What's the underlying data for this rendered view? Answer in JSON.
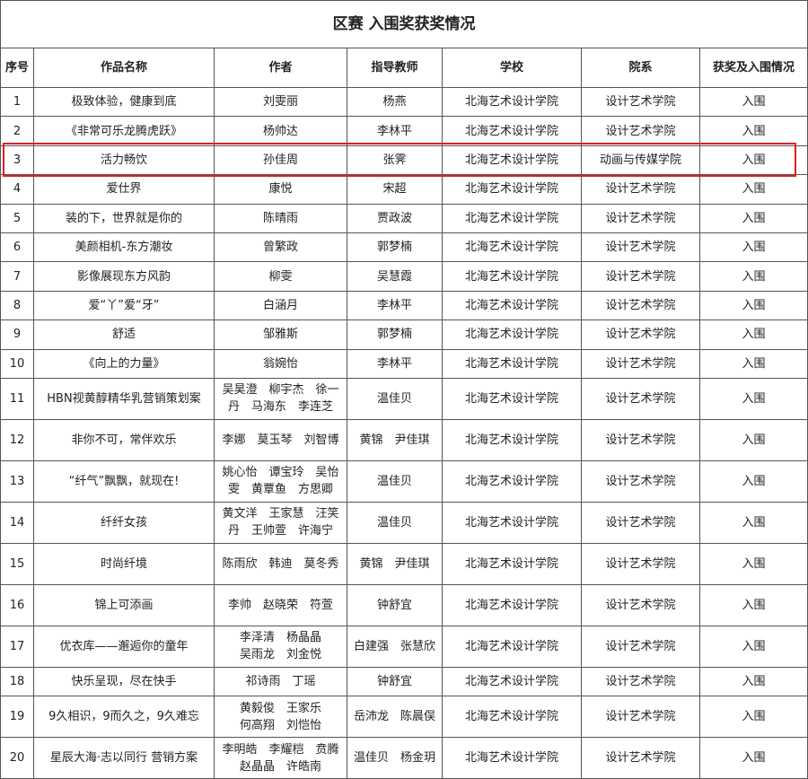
{
  "title": "区赛 入围奖获奖情况",
  "headers": [
    "序号",
    "作品名称",
    "作者",
    "指导教师",
    "学校",
    "院系",
    "获奖及入围情况"
  ],
  "highlight_color": "#e02020",
  "rows": [
    {
      "no": "1",
      "work": "极致体验，健康到底",
      "author": "刘雯丽",
      "teacher": "杨燕",
      "school": "北海艺术设计学院",
      "dept": "设计艺术学院",
      "award": "入围"
    },
    {
      "no": "2",
      "work": "《非常可乐龙腾虎跃》",
      "author": "杨帅达",
      "teacher": "李林平",
      "school": "北海艺术设计学院",
      "dept": "设计艺术学院",
      "award": "入围"
    },
    {
      "no": "3",
      "work": "活力畅饮",
      "author": "孙佳周",
      "teacher": "张霁",
      "school": "北海艺术设计学院",
      "dept": "动画与传媒学院",
      "award": "入围"
    },
    {
      "no": "4",
      "work": "爱仕界",
      "author": "康悦",
      "teacher": "宋超",
      "school": "北海艺术设计学院",
      "dept": "设计艺术学院",
      "award": "入围"
    },
    {
      "no": "5",
      "work": "装的下，世界就是你的",
      "author": "陈晴雨",
      "teacher": "贾政波",
      "school": "北海艺术设计学院",
      "dept": "设计艺术学院",
      "award": "入围"
    },
    {
      "no": "6",
      "work": "美颜相机-东方潮妆",
      "author": "曾繁政",
      "teacher": "郭梦楠",
      "school": "北海艺术设计学院",
      "dept": "设计艺术学院",
      "award": "入围"
    },
    {
      "no": "7",
      "work": "影像展现东方风韵",
      "author": "柳雯",
      "teacher": "吴慧霞",
      "school": "北海艺术设计学院",
      "dept": "设计艺术学院",
      "award": "入围"
    },
    {
      "no": "8",
      "work": "爱“丫”爱“牙”",
      "author": "白涵月",
      "teacher": "李林平",
      "school": "北海艺术设计学院",
      "dept": "设计艺术学院",
      "award": "入围"
    },
    {
      "no": "9",
      "work": "舒适",
      "author": "邹雅斯",
      "teacher": "郭梦楠",
      "school": "北海艺术设计学院",
      "dept": "设计艺术学院",
      "award": "入围"
    },
    {
      "no": "10",
      "work": "《向上的力量》",
      "author": "翁婉怡",
      "teacher": "李林平",
      "school": "北海艺术设计学院",
      "dept": "设计艺术学院",
      "award": "入围"
    },
    {
      "no": "11",
      "work": "HBN视黄醇精华乳营销策划案",
      "author": "吴昊澄　柳宇杰　徐一\n丹　马海东　李连芝",
      "teacher": "温佳贝",
      "school": "北海艺术设计学院",
      "dept": "设计艺术学院",
      "award": "入围"
    },
    {
      "no": "12",
      "work": "非你不可，常伴欢乐",
      "author": "李娜　莫玉琴　刘智博",
      "teacher": "黄锦　尹佳琪",
      "school": "北海艺术设计学院",
      "dept": "设计艺术学院",
      "award": "入围"
    },
    {
      "no": "13",
      "work": "“纤气”飘飘，就现在!",
      "author": "姚心怡　谭宝玲　吴怡\n雯　黄覃鱼　方思卿",
      "teacher": "温佳贝",
      "school": "北海艺术设计学院",
      "dept": "设计艺术学院",
      "award": "入围"
    },
    {
      "no": "14",
      "work": "纤纤女孩",
      "author": "黄文洋　王家慧　汪笑\n丹　王帅萱　许海宁",
      "teacher": "温佳贝",
      "school": "北海艺术设计学院",
      "dept": "设计艺术学院",
      "award": "入围"
    },
    {
      "no": "15",
      "work": "时尚纤境",
      "author": "陈雨欣　韩迪　莫冬秀",
      "teacher": "黄锦　尹佳琪",
      "school": "北海艺术设计学院",
      "dept": "设计艺术学院",
      "award": "入围"
    },
    {
      "no": "16",
      "work": "锦上可添画",
      "author": "李帅　赵晓荣　符萱",
      "teacher": "钟舒宜",
      "school": "北海艺术设计学院",
      "dept": "设计艺术学院",
      "award": "入围"
    },
    {
      "no": "17",
      "work": "优衣库——邂逅你的童年",
      "author": "李泽清　杨晶晶\n吴雨龙　刘金悦",
      "teacher": "白建强　张慧欣",
      "school": "北海艺术设计学院",
      "dept": "设计艺术学院",
      "award": "入围"
    },
    {
      "no": "18",
      "work": "快乐呈现，尽在快手",
      "author": "祁诗雨　丁瑶",
      "teacher": "钟舒宜",
      "school": "北海艺术设计学院",
      "dept": "设计艺术学院",
      "award": "入围"
    },
    {
      "no": "19",
      "work": "9久相识，9而久之，9久难忘",
      "author": "黄毅俊　王家乐\n何高翔　刘恺怡",
      "teacher": "岳沛龙　陈晨俣",
      "school": "北海艺术设计学院",
      "dept": "设计艺术学院",
      "award": "入围"
    },
    {
      "no": "20",
      "work": "星辰大海·志以同行 营销方案",
      "author": "李明皓　李耀桤　贲腾\n赵晶晶　许皓南",
      "teacher": "温佳贝　杨金玥",
      "school": "北海艺术设计学院",
      "dept": "设计艺术学院",
      "award": "入围"
    }
  ]
}
